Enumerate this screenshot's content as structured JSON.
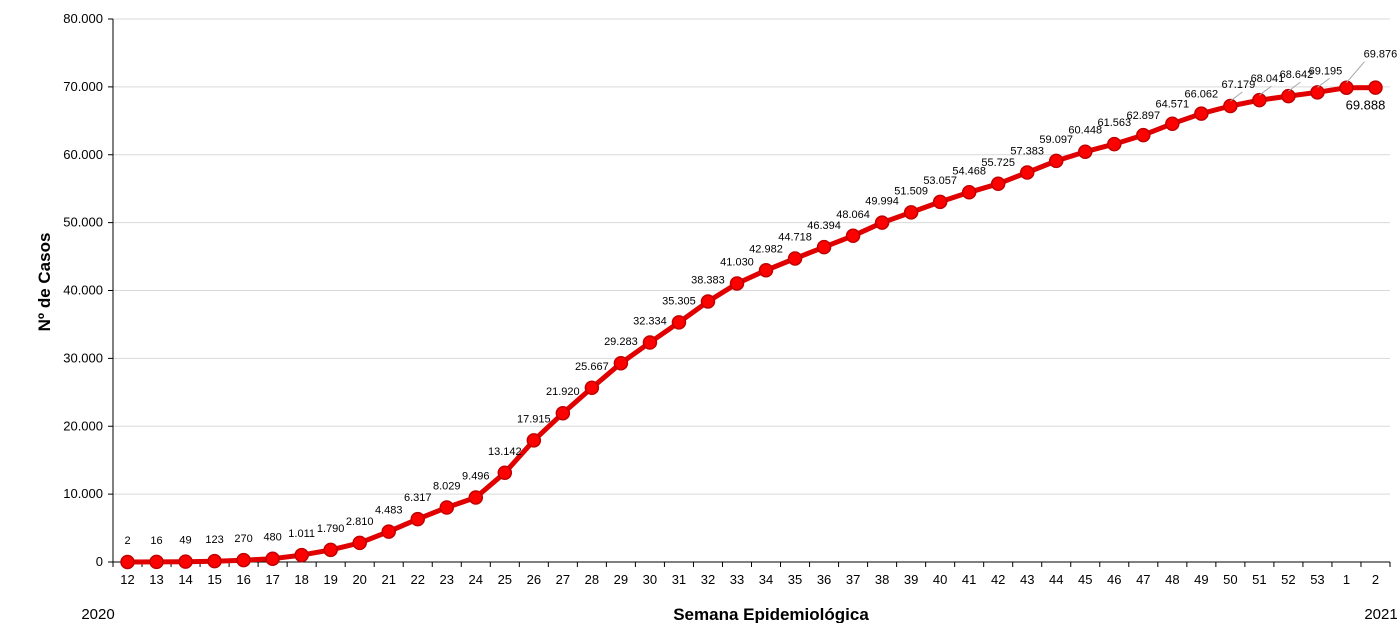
{
  "chart_data": {
    "type": "line",
    "title": "",
    "xlabel": "Semana Epidemiológica",
    "ylabel": "Nº de Casos",
    "year_start": "2020",
    "year_end": "2021",
    "categories": [
      "12",
      "13",
      "14",
      "15",
      "16",
      "17",
      "18",
      "19",
      "20",
      "21",
      "22",
      "23",
      "24",
      "25",
      "26",
      "27",
      "28",
      "29",
      "30",
      "31",
      "32",
      "33",
      "34",
      "35",
      "36",
      "37",
      "38",
      "39",
      "40",
      "41",
      "42",
      "43",
      "44",
      "45",
      "46",
      "47",
      "48",
      "49",
      "50",
      "51",
      "52",
      "53",
      "1",
      "2"
    ],
    "values": [
      2,
      16,
      49,
      123,
      270,
      480,
      1011,
      1790,
      2810,
      4483,
      6317,
      8029,
      9496,
      13142,
      17915,
      21920,
      25667,
      29283,
      32334,
      35305,
      38383,
      41030,
      42982,
      44718,
      46394,
      48064,
      49994,
      51509,
      53057,
      54468,
      55725,
      57383,
      59097,
      60448,
      61563,
      62897,
      64571,
      66062,
      67179,
      68041,
      68642,
      69195,
      69876,
      69888
    ],
    "data_labels": [
      "2",
      "16",
      "49",
      "123",
      "270",
      "480",
      "1.011",
      "1.790",
      "2.810",
      "4.483",
      "6.317",
      "8.029",
      "9.496",
      "13.142",
      "17.915",
      "21.920",
      "25.667",
      "29.283",
      "32.334",
      "35.305",
      "38.383",
      "41.030",
      "42.982",
      "44.718",
      "46.394",
      "48.064",
      "49.994",
      "51.509",
      "53.057",
      "54.468",
      "55.725",
      "57.383",
      "59.097",
      "60.448",
      "61.563",
      "62.897",
      "64.571",
      "66.062",
      "67.179",
      "68.041",
      "68.642",
      "69.195",
      "69.876",
      "69.888"
    ],
    "ylim": [
      0,
      80000
    ],
    "yticks": [
      0,
      10000,
      20000,
      30000,
      40000,
      50000,
      60000,
      70000,
      80000
    ],
    "ytick_labels": [
      "0",
      "10.000",
      "20.000",
      "30.000",
      "40.000",
      "50.000",
      "60.000",
      "70.000",
      "80.000"
    ],
    "grid": true,
    "legend": "none",
    "line_color": "#e00000",
    "marker_color": "#ff0000"
  }
}
